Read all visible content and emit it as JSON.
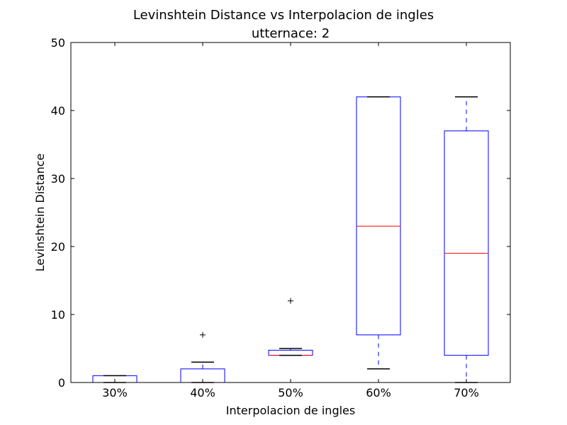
{
  "chart_data": {
    "type": "boxplot",
    "title": "Levinshtein Distance vs Interpolacion de ingles",
    "subtitle": "utternace: 2",
    "xlabel": "Interpolacion de ingles",
    "ylabel": "Levinshtein Distance",
    "ylim": [
      0,
      50
    ],
    "yticks": [
      0,
      10,
      20,
      30,
      40,
      50
    ],
    "categories": [
      "30%",
      "40%",
      "50%",
      "60%",
      "70%"
    ],
    "boxes": [
      {
        "category": "30%",
        "whisker_low": 0,
        "q1": 0,
        "median": 0,
        "q3": 1,
        "whisker_high": 1,
        "fliers": []
      },
      {
        "category": "40%",
        "whisker_low": 0,
        "q1": 0,
        "median": 0,
        "q3": 2,
        "whisker_high": 3,
        "fliers": [
          7
        ]
      },
      {
        "category": "50%",
        "whisker_low": 4,
        "q1": 4,
        "median": 4,
        "q3": 4.75,
        "whisker_high": 5,
        "fliers": [
          12
        ]
      },
      {
        "category": "60%",
        "whisker_low": 2,
        "q1": 7,
        "median": 23,
        "q3": 42,
        "whisker_high": 42,
        "fliers": []
      },
      {
        "category": "70%",
        "whisker_low": 0,
        "q1": 4,
        "median": 19,
        "q3": 37,
        "whisker_high": 42,
        "fliers": []
      }
    ],
    "colors": {
      "box": "#0000ff",
      "median": "#ff0000",
      "whisker": "#0000ff",
      "cap": "#000000",
      "flier": "#000000",
      "axes": "#000000"
    },
    "grid": false,
    "legend": "none"
  }
}
